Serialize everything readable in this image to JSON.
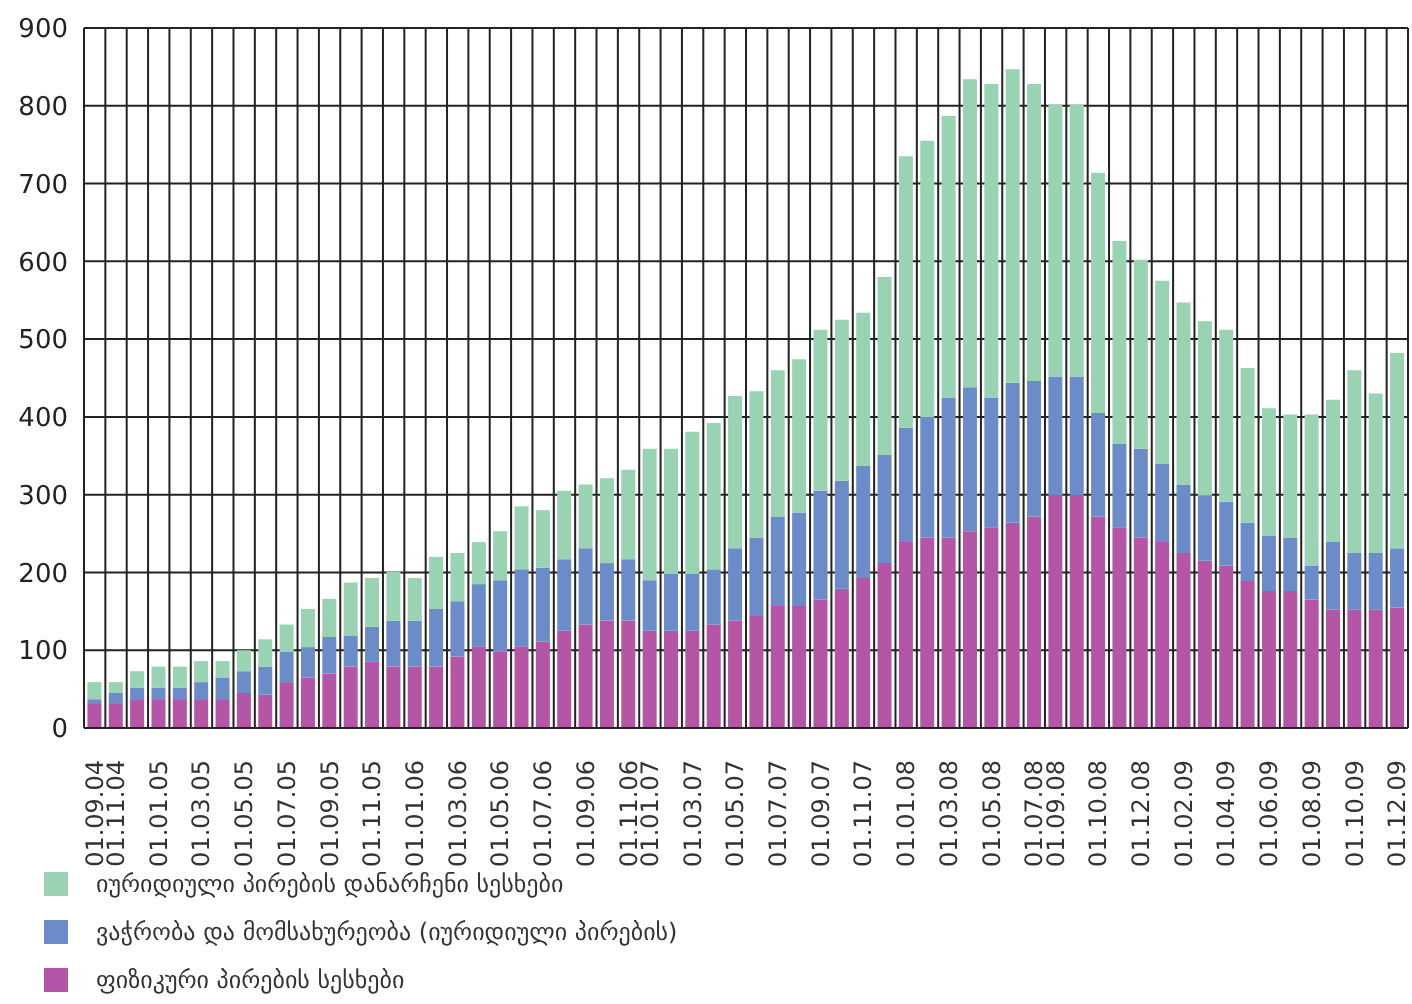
{
  "chart_data": {
    "type": "bar",
    "stacked": true,
    "categories": [
      "01.09.04",
      "01.11.04",
      null,
      "01.01.05",
      null,
      "01.03.05",
      null,
      "01.05.05",
      null,
      "01.07.05",
      null,
      "01.09.05",
      null,
      "01.11.05",
      null,
      "01.01.06",
      null,
      "01.03.06",
      null,
      "01.05.06",
      null,
      "01.07.06",
      null,
      "01.09.06",
      null,
      "01.11.06",
      "01.01.07",
      null,
      "01.03.07",
      null,
      "01.05.07",
      null,
      "01.07.07",
      null,
      "01.09.07",
      null,
      "01.11.07",
      null,
      "01.01.08",
      null,
      "01.03.08",
      null,
      "01.05.08",
      null,
      "01.07.08",
      "01.09.08",
      null,
      "01.10.08",
      null,
      "01.12.08",
      null,
      "01.02.09",
      null,
      "01.04.09",
      null,
      "01.06.09",
      null,
      "01.08.09",
      null,
      "01.10.09",
      null,
      "01.12.09"
    ],
    "series": [
      {
        "name": "ფიზიკური პირების სესხები",
        "color": "#b455a5",
        "values": [
          32,
          32,
          36,
          36,
          36,
          36,
          36,
          45,
          43,
          59,
          65,
          70,
          79,
          85,
          79,
          79,
          79,
          92,
          105,
          98,
          105,
          111,
          125,
          133,
          138,
          138,
          125,
          125,
          125,
          133,
          138,
          144,
          157,
          157,
          165,
          179,
          193,
          212,
          239,
          245,
          245,
          253,
          258,
          264,
          272,
          299,
          299,
          272,
          258,
          245,
          239,
          225,
          215,
          209,
          189,
          176,
          176,
          165,
          152,
          152,
          152,
          155
        ]
      },
      {
        "name": "ვაჭრობა და მომსახურეობა (იურიდიული პირების)",
        "color": "#6b8cc9",
        "values": [
          5,
          13,
          16,
          16,
          16,
          23,
          29,
          28,
          36,
          39,
          39,
          47,
          40,
          45,
          59,
          59,
          74,
          71,
          80,
          92,
          99,
          95,
          92,
          98,
          74,
          79,
          65,
          73,
          73,
          71,
          93,
          101,
          115,
          120,
          140,
          139,
          144,
          139,
          147,
          155,
          180,
          185,
          167,
          180,
          174,
          153,
          153,
          133,
          107,
          114,
          101,
          88,
          84,
          82,
          75,
          71,
          69,
          44,
          87,
          73,
          73,
          76
        ]
      },
      {
        "name": "იურიდიული პირების დანარჩენი სესხები",
        "color": "#99d3b3",
        "values": [
          22,
          14,
          21,
          27,
          27,
          27,
          21,
          27,
          35,
          35,
          49,
          49,
          68,
          63,
          63,
          55,
          67,
          62,
          54,
          63,
          81,
          74,
          88,
          82,
          109,
          115,
          169,
          161,
          183,
          188,
          196,
          188,
          188,
          197,
          207,
          207,
          197,
          229,
          349,
          355,
          362,
          396,
          403,
          403,
          382,
          349,
          349,
          309,
          261,
          243,
          235,
          234,
          224,
          221,
          199,
          164,
          158,
          194,
          183,
          235,
          205,
          251
        ]
      }
    ],
    "ylim": [
      0,
      900
    ],
    "yticks": [
      0,
      100,
      200,
      300,
      400,
      500,
      600,
      700,
      800,
      900
    ],
    "grid": true,
    "legend": "bottom"
  }
}
